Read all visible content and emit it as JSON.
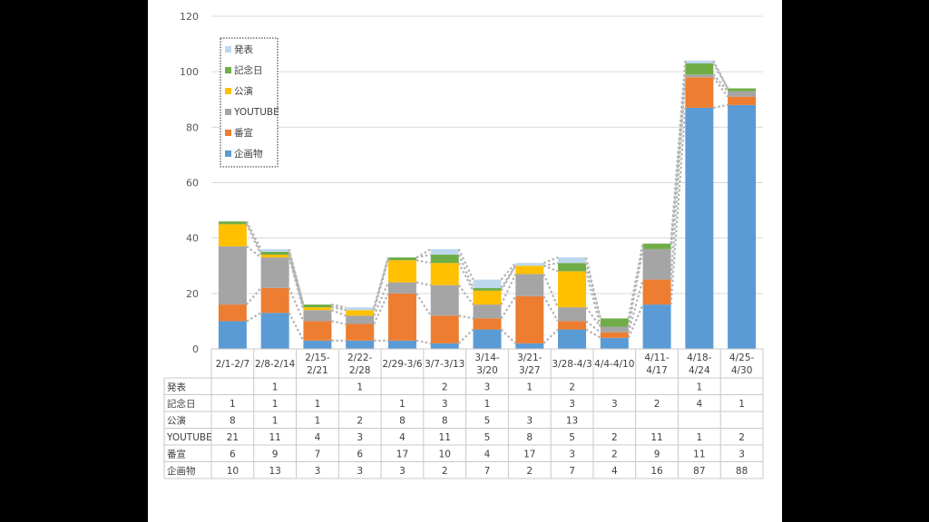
{
  "chart_data": {
    "type": "bar",
    "stacked": true,
    "categories": [
      "2/1-2/7",
      "2/8-2/14",
      "2/15-2/21",
      "2/22-2/28",
      "2/29-3/6",
      "3/7-3/13",
      "3/14-3/20",
      "3/21-3/27",
      "3/28-4/3",
      "4/4-4/10",
      "4/11-4/17",
      "4/18-4/24",
      "4/25-4/30"
    ],
    "category_lines": [
      [
        "2/1-2/7"
      ],
      [
        "2/8-2/14"
      ],
      [
        "2/15-",
        "2/21"
      ],
      [
        "2/22-",
        "2/28"
      ],
      [
        "2/29-3/6"
      ],
      [
        "3/7-3/13"
      ],
      [
        "3/14-",
        "3/20"
      ],
      [
        "3/21-",
        "3/27"
      ],
      [
        "3/28-4/3"
      ],
      [
        "4/4-4/10"
      ],
      [
        "4/11-",
        "4/17"
      ],
      [
        "4/18-",
        "4/24"
      ],
      [
        "4/25-",
        "4/30"
      ]
    ],
    "series": [
      {
        "name": "企画物",
        "color": "#5B9BD5",
        "values": [
          10,
          13,
          3,
          3,
          3,
          2,
          7,
          2,
          7,
          4,
          16,
          87,
          88
        ]
      },
      {
        "name": "番宣",
        "color": "#ED7D31",
        "values": [
          6,
          9,
          7,
          6,
          17,
          10,
          4,
          17,
          3,
          2,
          9,
          11,
          3
        ]
      },
      {
        "name": "YOUTUBE",
        "color": "#A5A5A5",
        "values": [
          21,
          11,
          4,
          3,
          4,
          11,
          5,
          8,
          5,
          2,
          11,
          1,
          2
        ]
      },
      {
        "name": "公演",
        "color": "#FFC000",
        "values": [
          8,
          1,
          1,
          2,
          8,
          8,
          5,
          3,
          13,
          null,
          null,
          null,
          null
        ]
      },
      {
        "name": "記念日",
        "color": "#70AD47",
        "values": [
          1,
          1,
          1,
          null,
          1,
          3,
          1,
          null,
          3,
          3,
          2,
          4,
          1
        ]
      },
      {
        "name": "発表",
        "color": "#BDD7EE",
        "values": [
          null,
          1,
          null,
          1,
          null,
          2,
          3,
          1,
          2,
          null,
          null,
          1,
          null
        ]
      }
    ],
    "ylim": [
      0,
      120
    ],
    "yticks": [
      0,
      20,
      40,
      60,
      80,
      100,
      120
    ],
    "grid": true,
    "legend": "top-left",
    "series_lines": "dotted connectors between bar segments",
    "data_table": true
  }
}
